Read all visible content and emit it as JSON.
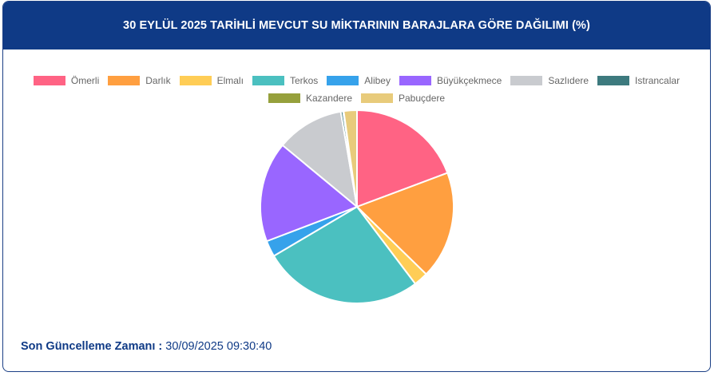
{
  "title": "30 EYLÜL 2025 TARİHLİ MEVCUT SU MİKTARININ BARAJLARA GÖRE DAĞILIMI (%)",
  "footer": {
    "label": "Son Güncelleme Zamanı :",
    "value": "30/09/2025 09:30:40"
  },
  "chart_data": {
    "type": "pie",
    "legend_position": "top",
    "categories": [
      "Ömerli",
      "Darlık",
      "Elmalı",
      "Terkos",
      "Alibey",
      "Büyükçekmece",
      "Sazlıdere",
      "Istrancalar",
      "Kazandere",
      "Pabuçdere"
    ],
    "values": [
      19.3,
      18.0,
      2.4,
      26.8,
      2.7,
      16.8,
      11.3,
      0.4,
      0.1,
      2.2
    ],
    "colors": [
      "#ff6384",
      "#ff9f40",
      "#ffcd56",
      "#4bc0c0",
      "#36a2eb",
      "#9966ff",
      "#c9cbcf",
      "#3d7a7e",
      "#96a03c",
      "#e8cb7b"
    ]
  }
}
